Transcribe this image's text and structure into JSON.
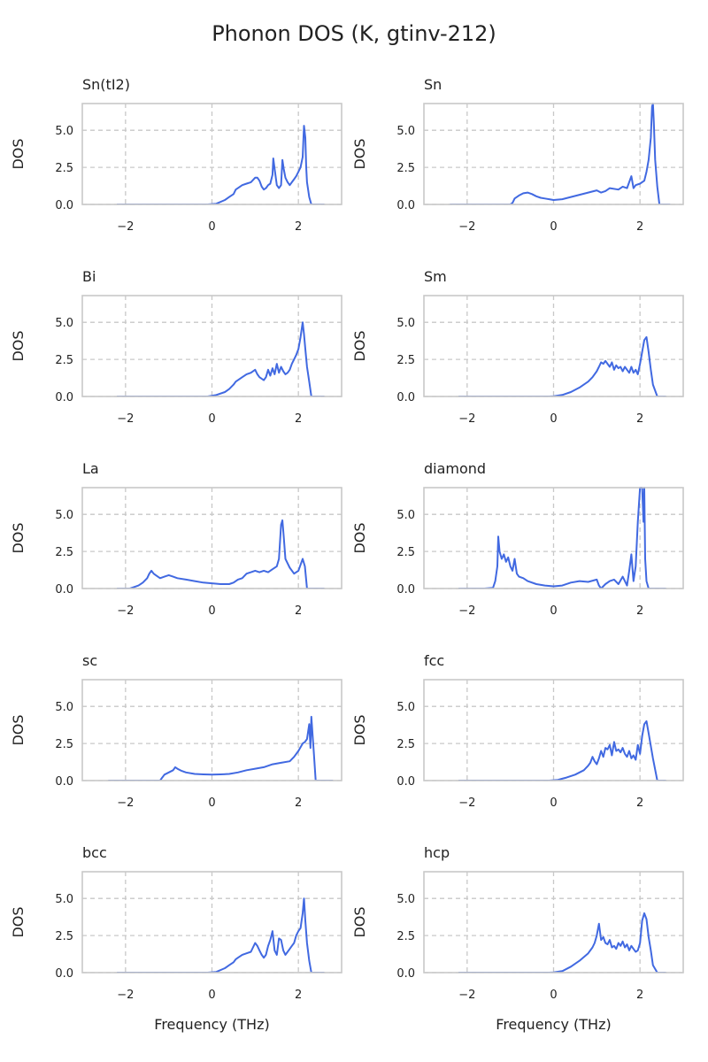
{
  "figure": {
    "title": "Phonon DOS (K, gtinv-212)",
    "line_color": "#4169e1",
    "grid_color": "#c8c8c8",
    "frame_color": "#c8c8c8"
  },
  "chart_data": [
    {
      "type": "line",
      "title": "Sn(tI2)",
      "xlabel": "",
      "ylabel": "DOS",
      "xlim": [
        -3,
        3
      ],
      "ylim": [
        0,
        6.8
      ],
      "xticks": [
        -2,
        0,
        2
      ],
      "xtick_labels": [
        "−2",
        "0",
        "2"
      ],
      "yticks": [
        0,
        2.5,
        5
      ],
      "ytick_labels": [
        "0.0",
        "2.5",
        "5.0"
      ],
      "grid": true,
      "series": [
        {
          "x": [
            -2.2,
            -0.1,
            0.1,
            0.3,
            0.4,
            0.5,
            0.55,
            0.6,
            0.7,
            0.8,
            0.9,
            1.0,
            1.05,
            1.1,
            1.15,
            1.2,
            1.25,
            1.3,
            1.35,
            1.4,
            1.42,
            1.45,
            1.5,
            1.55,
            1.6,
            1.63,
            1.66,
            1.7,
            1.75,
            1.8,
            1.85,
            1.9,
            1.95,
            2.0,
            2.05,
            2.1,
            2.13,
            2.16,
            2.18,
            2.2,
            2.25,
            2.3,
            2.6
          ],
          "y": [
            0,
            0,
            0.05,
            0.3,
            0.5,
            0.7,
            1.0,
            1.1,
            1.3,
            1.4,
            1.5,
            1.8,
            1.8,
            1.6,
            1.2,
            1.0,
            1.1,
            1.3,
            1.4,
            2.0,
            3.1,
            2.4,
            1.3,
            1.1,
            1.3,
            3.0,
            2.4,
            1.8,
            1.5,
            1.3,
            1.5,
            1.7,
            1.9,
            2.2,
            2.5,
            3.2,
            5.3,
            4.5,
            2.5,
            1.5,
            0.5,
            0,
            0
          ]
        }
      ]
    },
    {
      "type": "line",
      "title": "Sn",
      "xlabel": "",
      "ylabel": "DOS",
      "xlim": [
        -3,
        3
      ],
      "ylim": [
        0,
        6.8
      ],
      "xticks": [
        -2,
        0,
        2
      ],
      "xtick_labels": [
        "−2",
        "0",
        "2"
      ],
      "yticks": [
        0,
        2.5,
        5
      ],
      "ytick_labels": [
        "0.0",
        "2.5",
        "5.0"
      ],
      "grid": true,
      "series": [
        {
          "x": [
            -2.4,
            -1.0,
            -0.95,
            -0.9,
            -0.8,
            -0.7,
            -0.6,
            -0.5,
            -0.4,
            -0.3,
            -0.2,
            -0.1,
            0,
            0.2,
            0.4,
            0.6,
            0.8,
            1.0,
            1.1,
            1.2,
            1.3,
            1.5,
            1.6,
            1.7,
            1.8,
            1.85,
            1.9,
            2.0,
            2.1,
            2.15,
            2.2,
            2.25,
            2.28,
            2.3,
            2.32,
            2.35,
            2.4,
            2.45,
            2.7
          ],
          "y": [
            0,
            0,
            0.1,
            0.4,
            0.6,
            0.75,
            0.8,
            0.7,
            0.55,
            0.45,
            0.4,
            0.35,
            0.3,
            0.35,
            0.5,
            0.65,
            0.8,
            0.95,
            0.8,
            0.9,
            1.1,
            1.0,
            1.2,
            1.1,
            1.9,
            1.1,
            1.3,
            1.4,
            1.6,
            2.2,
            3.0,
            4.5,
            6.6,
            6.8,
            5.5,
            3.0,
            1.2,
            0,
            0
          ]
        }
      ]
    },
    {
      "type": "line",
      "title": "Bi",
      "xlabel": "",
      "ylabel": "DOS",
      "xlim": [
        -3,
        3
      ],
      "ylim": [
        0,
        6.8
      ],
      "xticks": [
        -2,
        0,
        2
      ],
      "xtick_labels": [
        "−2",
        "0",
        "2"
      ],
      "yticks": [
        0,
        2.5,
        5
      ],
      "ytick_labels": [
        "0.0",
        "2.5",
        "5.0"
      ],
      "grid": true,
      "series": [
        {
          "x": [
            -2.2,
            -0.1,
            0.1,
            0.3,
            0.4,
            0.5,
            0.55,
            0.6,
            0.7,
            0.8,
            0.9,
            1.0,
            1.05,
            1.1,
            1.15,
            1.2,
            1.25,
            1.3,
            1.35,
            1.4,
            1.45,
            1.5,
            1.55,
            1.6,
            1.65,
            1.7,
            1.75,
            1.8,
            1.85,
            1.9,
            1.95,
            2.0,
            2.05,
            2.1,
            2.13,
            2.16,
            2.2,
            2.25,
            2.3,
            2.6
          ],
          "y": [
            0,
            0,
            0.1,
            0.3,
            0.5,
            0.8,
            1.0,
            1.1,
            1.3,
            1.5,
            1.6,
            1.8,
            1.5,
            1.3,
            1.2,
            1.1,
            1.3,
            1.8,
            1.4,
            1.9,
            1.5,
            2.2,
            1.6,
            2.0,
            1.7,
            1.5,
            1.6,
            1.8,
            2.2,
            2.5,
            2.8,
            3.2,
            4.0,
            5.0,
            4.2,
            3.2,
            2.0,
            1.0,
            0,
            0
          ]
        }
      ]
    },
    {
      "type": "line",
      "title": "Sm",
      "xlabel": "",
      "ylabel": "DOS",
      "xlim": [
        -3,
        3
      ],
      "ylim": [
        0,
        6.8
      ],
      "xticks": [
        -2,
        0,
        2
      ],
      "xtick_labels": [
        "−2",
        "0",
        "2"
      ],
      "yticks": [
        0,
        2.5,
        5
      ],
      "ytick_labels": [
        "0.0",
        "2.5",
        "5.0"
      ],
      "grid": true,
      "series": [
        {
          "x": [
            -2.2,
            -0.1,
            0,
            0.2,
            0.4,
            0.6,
            0.8,
            0.9,
            1.0,
            1.05,
            1.1,
            1.15,
            1.2,
            1.25,
            1.3,
            1.35,
            1.4,
            1.45,
            1.5,
            1.55,
            1.6,
            1.65,
            1.7,
            1.75,
            1.8,
            1.85,
            1.9,
            1.95,
            2.0,
            2.05,
            2.1,
            2.15,
            2.2,
            2.25,
            2.3,
            2.4,
            2.6
          ],
          "y": [
            0,
            0,
            0.02,
            0.1,
            0.3,
            0.6,
            1.0,
            1.3,
            1.7,
            2.0,
            2.3,
            2.2,
            2.4,
            2.2,
            2.0,
            2.3,
            1.8,
            2.1,
            1.9,
            2.0,
            1.7,
            2.0,
            1.8,
            1.6,
            2.0,
            1.6,
            1.8,
            1.5,
            2.2,
            3.0,
            3.8,
            4.0,
            3.0,
            1.8,
            0.8,
            0,
            0
          ]
        }
      ]
    },
    {
      "type": "line",
      "title": "La",
      "xlabel": "",
      "ylabel": "DOS",
      "xlim": [
        -3,
        3
      ],
      "ylim": [
        0,
        6.8
      ],
      "xticks": [
        -2,
        0,
        2
      ],
      "xtick_labels": [
        "−2",
        "0",
        "2"
      ],
      "yticks": [
        0,
        2.5,
        5
      ],
      "ytick_labels": [
        "0.0",
        "2.5",
        "5.0"
      ],
      "grid": true,
      "series": [
        {
          "x": [
            -2.2,
            -1.9,
            -1.8,
            -1.7,
            -1.6,
            -1.5,
            -1.45,
            -1.4,
            -1.35,
            -1.3,
            -1.2,
            -1.1,
            -1.0,
            -0.9,
            -0.8,
            -0.6,
            -0.4,
            -0.2,
            0,
            0.2,
            0.4,
            0.5,
            0.6,
            0.7,
            0.8,
            0.9,
            1.0,
            1.1,
            1.2,
            1.3,
            1.4,
            1.5,
            1.55,
            1.6,
            1.63,
            1.66,
            1.7,
            1.8,
            1.9,
            2.0,
            2.05,
            2.1,
            2.15,
            2.2,
            2.6
          ],
          "y": [
            0,
            0,
            0.1,
            0.2,
            0.4,
            0.7,
            1.0,
            1.2,
            1.0,
            0.9,
            0.7,
            0.8,
            0.9,
            0.8,
            0.7,
            0.6,
            0.5,
            0.4,
            0.35,
            0.3,
            0.3,
            0.4,
            0.6,
            0.7,
            1.0,
            1.1,
            1.2,
            1.1,
            1.2,
            1.1,
            1.3,
            1.5,
            2.0,
            4.3,
            4.6,
            3.5,
            2.0,
            1.4,
            1.0,
            1.2,
            1.6,
            2.0,
            1.5,
            0,
            0
          ]
        }
      ]
    },
    {
      "type": "line",
      "title": "diamond",
      "xlabel": "",
      "ylabel": "DOS",
      "xlim": [
        -3,
        3
      ],
      "ylim": [
        0,
        6.8
      ],
      "xticks": [
        -2,
        0,
        2
      ],
      "xtick_labels": [
        "−2",
        "0",
        "2"
      ],
      "yticks": [
        0,
        2.5,
        5
      ],
      "ytick_labels": [
        "0.0",
        "2.5",
        "5.0"
      ],
      "grid": true,
      "series": [
        {
          "x": [
            -2.2,
            -1.6,
            -1.4,
            -1.35,
            -1.3,
            -1.28,
            -1.25,
            -1.2,
            -1.15,
            -1.1,
            -1.05,
            -1.0,
            -0.95,
            -0.9,
            -0.85,
            -0.8,
            -0.7,
            -0.6,
            -0.4,
            -0.2,
            0,
            0.2,
            0.4,
            0.6,
            0.8,
            1.0,
            1.05,
            1.1,
            1.2,
            1.3,
            1.4,
            1.5,
            1.6,
            1.7,
            1.75,
            1.8,
            1.85,
            1.9,
            1.95,
            2.0,
            2.05,
            2.08,
            2.1,
            2.12,
            2.15,
            2.2,
            2.6
          ],
          "y": [
            0,
            0,
            0.05,
            0.5,
            1.5,
            3.5,
            2.5,
            2.0,
            2.3,
            1.8,
            2.1,
            1.5,
            1.2,
            2.0,
            1.0,
            0.8,
            0.7,
            0.5,
            0.3,
            0.2,
            0.15,
            0.2,
            0.4,
            0.5,
            0.45,
            0.6,
            0.2,
            0.0,
            0.3,
            0.5,
            0.6,
            0.3,
            0.8,
            0.2,
            1.2,
            2.3,
            0.5,
            1.5,
            4.5,
            6.8,
            6.8,
            4.5,
            6.8,
            2.0,
            0.5,
            0,
            0
          ]
        }
      ]
    },
    {
      "type": "line",
      "title": "sc",
      "xlabel": "",
      "ylabel": "DOS",
      "xlim": [
        -3,
        3
      ],
      "ylim": [
        0,
        6.8
      ],
      "xticks": [
        -2,
        0,
        2
      ],
      "xtick_labels": [
        "−2",
        "0",
        "2"
      ],
      "yticks": [
        0,
        2.5,
        5
      ],
      "ytick_labels": [
        "0.0",
        "2.5",
        "5.0"
      ],
      "grid": true,
      "series": [
        {
          "x": [
            -2.4,
            -1.2,
            -1.15,
            -1.1,
            -1.0,
            -0.9,
            -0.85,
            -0.8,
            -0.7,
            -0.6,
            -0.4,
            -0.2,
            0,
            0.2,
            0.4,
            0.6,
            0.8,
            1.0,
            1.2,
            1.4,
            1.6,
            1.8,
            1.9,
            2.0,
            2.1,
            2.15,
            2.2,
            2.25,
            2.28,
            2.3,
            2.33,
            2.36,
            2.4,
            2.45,
            2.8
          ],
          "y": [
            0,
            0,
            0.2,
            0.4,
            0.55,
            0.7,
            0.9,
            0.8,
            0.65,
            0.55,
            0.45,
            0.42,
            0.4,
            0.42,
            0.45,
            0.55,
            0.7,
            0.8,
            0.9,
            1.1,
            1.2,
            1.3,
            1.6,
            2.0,
            2.5,
            2.6,
            2.8,
            3.8,
            2.2,
            4.3,
            3.0,
            1.8,
            0,
            0,
            0
          ]
        }
      ]
    },
    {
      "type": "line",
      "title": "fcc",
      "xlabel": "",
      "ylabel": "DOS",
      "xlim": [
        -3,
        3
      ],
      "ylim": [
        0,
        6.8
      ],
      "xticks": [
        -2,
        0,
        2
      ],
      "xtick_labels": [
        "−2",
        "0",
        "2"
      ],
      "yticks": [
        0,
        2.5,
        5
      ],
      "ytick_labels": [
        "0.0",
        "2.5",
        "5.0"
      ],
      "grid": true,
      "series": [
        {
          "x": [
            -2.2,
            -0.1,
            0.1,
            0.3,
            0.5,
            0.7,
            0.8,
            0.85,
            0.9,
            0.95,
            1.0,
            1.05,
            1.1,
            1.15,
            1.2,
            1.25,
            1.3,
            1.35,
            1.4,
            1.45,
            1.5,
            1.55,
            1.6,
            1.65,
            1.7,
            1.75,
            1.8,
            1.85,
            1.9,
            1.95,
            2.0,
            2.05,
            2.1,
            2.15,
            2.2,
            2.3,
            2.4,
            2.6
          ],
          "y": [
            0,
            0,
            0.05,
            0.2,
            0.4,
            0.7,
            1.0,
            1.2,
            1.6,
            1.3,
            1.1,
            1.5,
            2.0,
            1.6,
            2.2,
            2.1,
            2.4,
            1.7,
            2.6,
            2.0,
            2.1,
            1.9,
            2.2,
            1.8,
            1.6,
            2.0,
            1.5,
            1.7,
            1.4,
            2.4,
            1.8,
            3.0,
            3.8,
            4.0,
            3.2,
            1.5,
            0,
            0
          ]
        }
      ]
    },
    {
      "type": "line",
      "title": "bcc",
      "xlabel": "Frequency (THz)",
      "ylabel": "DOS",
      "xlim": [
        -3,
        3
      ],
      "ylim": [
        0,
        6.8
      ],
      "xticks": [
        -2,
        0,
        2
      ],
      "xtick_labels": [
        "−2",
        "0",
        "2"
      ],
      "yticks": [
        0,
        2.5,
        5
      ],
      "ytick_labels": [
        "0.0",
        "2.5",
        "5.0"
      ],
      "grid": true,
      "series": [
        {
          "x": [
            -2.2,
            -0.1,
            0.1,
            0.3,
            0.4,
            0.5,
            0.55,
            0.6,
            0.7,
            0.8,
            0.9,
            1.0,
            1.05,
            1.1,
            1.15,
            1.2,
            1.25,
            1.3,
            1.35,
            1.4,
            1.45,
            1.5,
            1.55,
            1.6,
            1.65,
            1.7,
            1.75,
            1.8,
            1.85,
            1.9,
            1.95,
            2.0,
            2.05,
            2.1,
            2.13,
            2.16,
            2.2,
            2.25,
            2.3,
            2.6
          ],
          "y": [
            0,
            0,
            0.05,
            0.3,
            0.5,
            0.7,
            0.9,
            1.0,
            1.2,
            1.3,
            1.4,
            2.0,
            1.8,
            1.5,
            1.2,
            1.0,
            1.2,
            1.8,
            2.2,
            2.8,
            1.5,
            1.2,
            2.3,
            2.2,
            1.5,
            1.2,
            1.4,
            1.6,
            1.8,
            2.0,
            2.5,
            2.8,
            3.0,
            4.0,
            5.0,
            3.5,
            2.0,
            0.8,
            0,
            0
          ]
        }
      ]
    },
    {
      "type": "line",
      "title": "hcp",
      "xlabel": "Frequency (THz)",
      "ylabel": "DOS",
      "xlim": [
        -3,
        3
      ],
      "ylim": [
        0,
        6.8
      ],
      "xticks": [
        -2,
        0,
        2
      ],
      "xtick_labels": [
        "−2",
        "0",
        "2"
      ],
      "yticks": [
        0,
        2.5,
        5
      ],
      "ytick_labels": [
        "0.0",
        "2.5",
        "5.0"
      ],
      "grid": true,
      "series": [
        {
          "x": [
            -2.2,
            -0.1,
            0,
            0.2,
            0.4,
            0.6,
            0.8,
            0.9,
            0.95,
            1.0,
            1.05,
            1.1,
            1.15,
            1.2,
            1.25,
            1.3,
            1.35,
            1.4,
            1.45,
            1.5,
            1.55,
            1.6,
            1.65,
            1.7,
            1.75,
            1.8,
            1.85,
            1.9,
            1.95,
            2.0,
            2.05,
            2.1,
            2.15,
            2.2,
            2.25,
            2.3,
            2.4,
            2.6
          ],
          "y": [
            0,
            0,
            0.02,
            0.1,
            0.4,
            0.8,
            1.3,
            1.7,
            2.0,
            2.5,
            3.3,
            2.2,
            2.4,
            2.0,
            1.9,
            2.2,
            1.7,
            1.8,
            1.6,
            2.0,
            1.8,
            2.1,
            1.7,
            1.9,
            1.5,
            1.8,
            1.6,
            1.4,
            1.5,
            2.0,
            3.5,
            4.0,
            3.6,
            2.4,
            1.5,
            0.5,
            0,
            0
          ]
        }
      ]
    }
  ]
}
